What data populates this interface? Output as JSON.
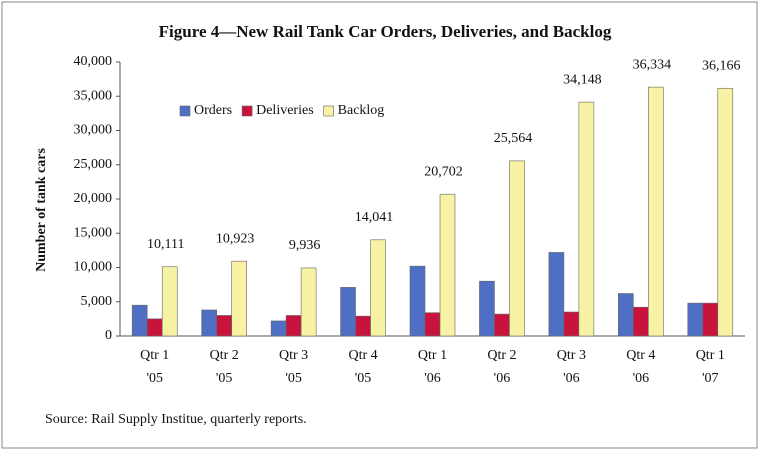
{
  "chart_data": {
    "type": "bar",
    "title": "Figure 4—New Rail Tank Car Orders, Deliveries, and Backlog",
    "ylabel": "Number of tank cars",
    "source": "Source:  Rail Supply Institue, quarterly reports.",
    "categories": [
      [
        "Qtr 1",
        "'05"
      ],
      [
        "Qtr 2",
        "'05"
      ],
      [
        "Qtr 3",
        "'05"
      ],
      [
        "Qtr 4",
        "'05"
      ],
      [
        "Qtr 1",
        "'06"
      ],
      [
        "Qtr 2",
        "'06"
      ],
      [
        "Qtr 3",
        "'06"
      ],
      [
        "Qtr 4",
        "'06"
      ],
      [
        "Qtr 1",
        "'07"
      ]
    ],
    "series": [
      {
        "name": "Orders",
        "color": "#4f6fc4",
        "values": [
          4500,
          3800,
          2200,
          7100,
          10200,
          8000,
          12200,
          6200,
          4800
        ]
      },
      {
        "name": "Deliveries",
        "color": "#c8143c",
        "values": [
          2500,
          3000,
          3000,
          2900,
          3400,
          3200,
          3500,
          4200,
          4800
        ]
      },
      {
        "name": "Backlog",
        "color": "#f8f2a4",
        "values": [
          10111,
          10923,
          9936,
          14041,
          20702,
          25564,
          34148,
          36334,
          36166
        ],
        "value_labels": [
          "10,111",
          "10,923",
          "9,936",
          "14,041",
          "20,702",
          "25,564",
          "34,148",
          "36,334",
          "36,166"
        ]
      }
    ],
    "ylim": [
      0,
      40000
    ],
    "yticks": [
      0,
      {
        "value": 5000,
        "label": "5,000"
      },
      {
        "value": 10000,
        "label": "10,000"
      },
      {
        "value": 15000,
        "label": "15,000"
      },
      {
        "value": 20000,
        "label": "20,000"
      },
      {
        "value": 25000,
        "label": "25,000"
      },
      {
        "value": 30000,
        "label": "30,000"
      },
      {
        "value": 35000,
        "label": "35,000"
      },
      {
        "value": 40000,
        "label": "40,000"
      }
    ],
    "legend": "top-left"
  }
}
